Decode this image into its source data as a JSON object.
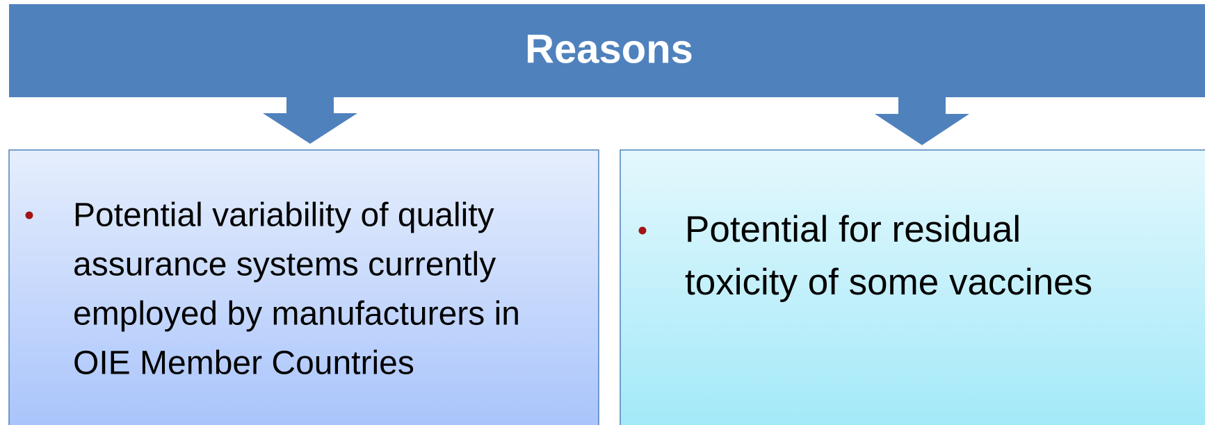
{
  "header": {
    "title": "Reasons"
  },
  "boxes": [
    {
      "lines": [
        "Potential variability of quality",
        "assurance systems currently",
        "employed by manufacturers in",
        "OIE Member Countries"
      ]
    },
    {
      "lines": [
        "Potential for residual",
        "toxicity of some vaccines"
      ]
    }
  ]
}
